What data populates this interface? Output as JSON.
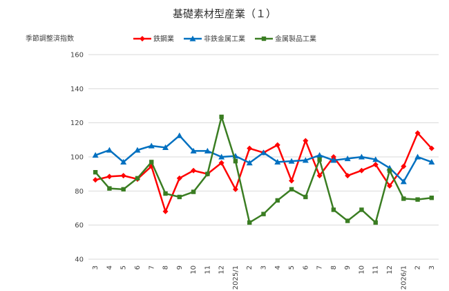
{
  "chart_data": {
    "type": "line",
    "title": "基礎素材型産業（１）",
    "ylabel": "季節調整済指数",
    "xlabel": "",
    "ylim": [
      40,
      160
    ],
    "yticks": [
      40,
      60,
      80,
      100,
      120,
      140,
      160
    ],
    "grid": true,
    "legend_position": "top",
    "categories": [
      "3",
      "4",
      "5",
      "6",
      "7",
      "8",
      "9",
      "10",
      "11",
      "12",
      "2025/1",
      "2",
      "3",
      "4",
      "5",
      "6",
      "7",
      "8",
      "9",
      "10",
      "11",
      "12",
      "2026/1",
      "2",
      "3"
    ],
    "series": [
      {
        "name": "鉄鋼業",
        "color": "#ff0000",
        "marker": "diamond",
        "values": [
          86.5,
          88.5,
          89,
          87,
          94.5,
          68,
          87.5,
          92,
          90,
          96.5,
          81,
          105,
          102.5,
          107,
          86,
          109.5,
          89,
          100,
          89,
          92,
          95.5,
          83,
          94.5,
          114,
          105
        ]
      },
      {
        "name": "非鉄金属工業",
        "color": "#0070c0",
        "marker": "triangle",
        "values": [
          101,
          104,
          97,
          104,
          106.5,
          105.5,
          112.5,
          103.5,
          103.5,
          100,
          100.5,
          96.5,
          102.5,
          97,
          97.5,
          98,
          101,
          98,
          99,
          100,
          98.5,
          93.5,
          85.5,
          100,
          97
        ]
      },
      {
        "name": "金属製品工業",
        "color": "#3a7d22",
        "marker": "square",
        "values": [
          91,
          81.5,
          81,
          87.5,
          97,
          78.5,
          76.5,
          79.5,
          90,
          123.5,
          97.5,
          61.5,
          66.5,
          74.5,
          81,
          76.5,
          98.5,
          69,
          62.5,
          69,
          61.5,
          92,
          75.5,
          75,
          76
        ]
      }
    ]
  }
}
